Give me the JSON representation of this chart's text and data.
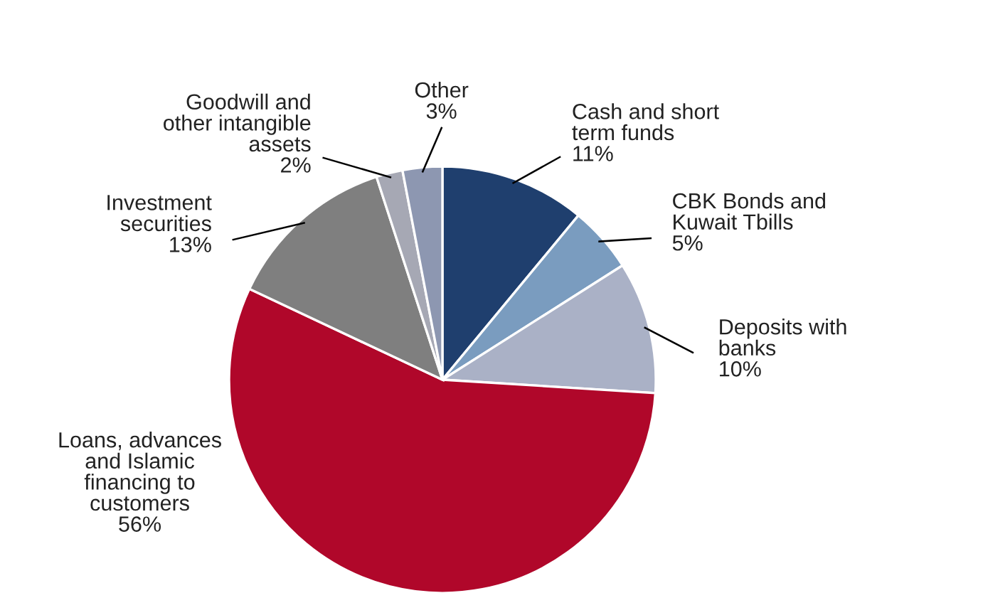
{
  "chart_data": {
    "type": "pie",
    "categories": [
      "Cash and short\nterm funds",
      "CBK Bonds and\nKuwait Tbills",
      "Deposits with\nbanks",
      "Loans, advances\nand Islamic\nfinancing to\ncustomers",
      "Investment\nsecurities",
      "Goodwill and\nother intangible\nassets",
      "Other"
    ],
    "values": [
      11,
      5,
      10,
      56,
      13,
      2,
      3
    ],
    "colors": [
      "#1f3f6e",
      "#7a9cbf",
      "#aab1c6",
      "#b0072a",
      "#7f7f7f",
      "#a6a8b4",
      "#8d97b1"
    ],
    "value_labels": [
      "11%",
      "5%",
      "10%",
      "56%",
      "13%",
      "2%",
      "3%"
    ],
    "legend": false
  }
}
